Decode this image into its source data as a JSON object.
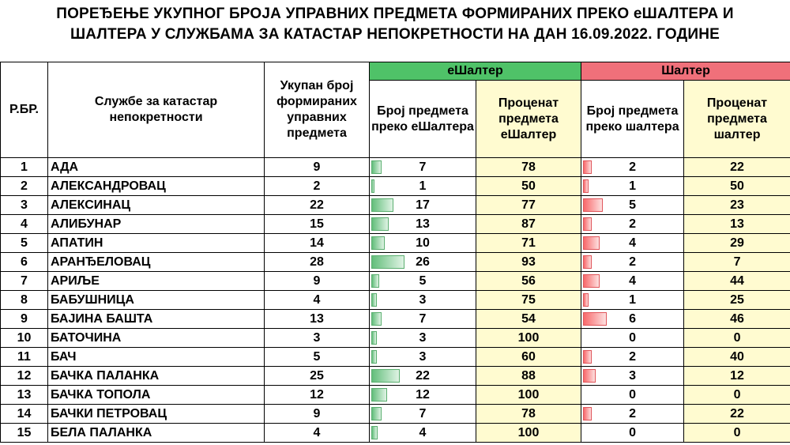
{
  "title_line1": "ПОРЕЂЕЊЕ УКУПНОГ БРОЈА УПРАВНИХ ПРЕДМЕТА ФОРМИРАНИХ ПРЕКО еШАЛТЕРА И",
  "title_line2": "ШАЛТЕРА У СЛУЖБАМА ЗА КАТАСТАР НЕПОКРЕТНОСТИ НА ДАН 16.09.2022. ГОДИНЕ",
  "headers": {
    "rbr": "Р.БР.",
    "office": "Службе за катастар непокретности",
    "total": "Укупан број формираних управних предмета",
    "eshalter_group": "еШалтер",
    "e_count": "Број предмета преко еШалтера",
    "e_percent": "Проценат предмета еШалтер",
    "shalter_group": "Шалтер",
    "s_count": "Број предмета преко шалтера",
    "s_percent": "Проценат предмета шалтер"
  },
  "rows": [
    {
      "rbr": "1",
      "office": "АДА",
      "total": "9",
      "e_count": "7",
      "e_pct": "78",
      "s_count": "2",
      "s_pct": "22"
    },
    {
      "rbr": "2",
      "office": "АЛЕКСАНДРОВАЦ",
      "total": "2",
      "e_count": "1",
      "e_pct": "50",
      "s_count": "1",
      "s_pct": "50"
    },
    {
      "rbr": "3",
      "office": "АЛЕКСИНАЦ",
      "total": "22",
      "e_count": "17",
      "e_pct": "77",
      "s_count": "5",
      "s_pct": "23"
    },
    {
      "rbr": "4",
      "office": "АЛИБУНАР",
      "total": "15",
      "e_count": "13",
      "e_pct": "87",
      "s_count": "2",
      "s_pct": "13"
    },
    {
      "rbr": "5",
      "office": "АПАТИН",
      "total": "14",
      "e_count": "10",
      "e_pct": "71",
      "s_count": "4",
      "s_pct": "29"
    },
    {
      "rbr": "6",
      "office": "АРАНЂЕЛОВАЦ",
      "total": "28",
      "e_count": "26",
      "e_pct": "93",
      "s_count": "2",
      "s_pct": "7"
    },
    {
      "rbr": "7",
      "office": "АРИЉЕ",
      "total": "9",
      "e_count": "5",
      "e_pct": "56",
      "s_count": "4",
      "s_pct": "44"
    },
    {
      "rbr": "8",
      "office": "БАБУШНИЦА",
      "total": "4",
      "e_count": "3",
      "e_pct": "75",
      "s_count": "1",
      "s_pct": "25"
    },
    {
      "rbr": "9",
      "office": "БАЈИНА БАШТА",
      "total": "13",
      "e_count": "7",
      "e_pct": "54",
      "s_count": "6",
      "s_pct": "46"
    },
    {
      "rbr": "10",
      "office": "БАТОЧИНА",
      "total": "3",
      "e_count": "3",
      "e_pct": "100",
      "s_count": "0",
      "s_pct": "0"
    },
    {
      "rbr": "11",
      "office": "БАЧ",
      "total": "5",
      "e_count": "3",
      "e_pct": "60",
      "s_count": "2",
      "s_pct": "40"
    },
    {
      "rbr": "12",
      "office": "БАЧКА ПАЛАНКА",
      "total": "25",
      "e_count": "22",
      "e_pct": "88",
      "s_count": "3",
      "s_pct": "12"
    },
    {
      "rbr": "13",
      "office": "БАЧКА ТОПОЛА",
      "total": "12",
      "e_count": "12",
      "e_pct": "100",
      "s_count": "0",
      "s_pct": "0"
    },
    {
      "rbr": "14",
      "office": "БАЧКИ ПЕТРОВАЦ",
      "total": "9",
      "e_count": "7",
      "e_pct": "78",
      "s_count": "2",
      "s_pct": "22"
    },
    {
      "rbr": "15",
      "office": "БЕЛА ПАЛАНКА",
      "total": "4",
      "e_count": "4",
      "e_pct": "100",
      "s_count": "0",
      "s_pct": "0"
    }
  ],
  "colors": {
    "eshalter_header": "#4fc268",
    "shalter_header": "#f0707a",
    "percent_column_bg": "#fffbd0",
    "data_bar_green": "#63be7b",
    "data_bar_red": "#f8696b"
  }
}
